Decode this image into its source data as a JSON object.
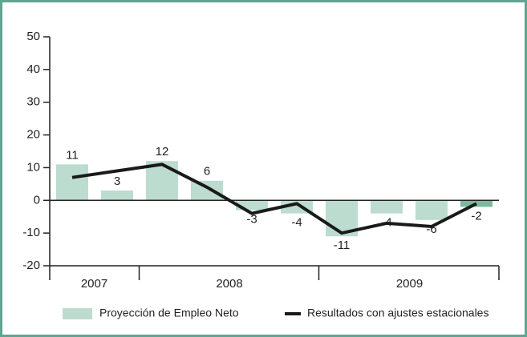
{
  "chart_data": {
    "type": "bar",
    "categories": [
      null,
      null,
      null,
      null,
      null,
      null,
      null,
      null,
      null,
      null
    ],
    "groups": [
      {
        "label": "2007",
        "count": 2
      },
      {
        "label": "2008",
        "count": 4
      },
      {
        "label": "2009",
        "count": 4
      }
    ],
    "series": [
      {
        "name": "Proyección de Empleo Neto",
        "type": "bar",
        "colors": [
          "#bcdccf",
          "#bcdccf",
          "#bcdccf",
          "#bcdccf",
          "#bcdccf",
          "#bcdccf",
          "#bcdccf",
          "#bcdccf",
          "#bcdccf",
          "#7fb8a0"
        ],
        "values": [
          11,
          3,
          12,
          6,
          -3,
          -4,
          -11,
          -4,
          -6,
          -2
        ]
      },
      {
        "name": "Resultados con ajustes estacionales",
        "type": "line",
        "color": "#1a1a1a",
        "values": [
          7,
          9,
          11,
          4,
          -4,
          -1,
          -10,
          -7,
          -8,
          -1
        ]
      }
    ],
    "ylim": [
      -20,
      50
    ],
    "yticks": [
      -20,
      -10,
      0,
      10,
      20,
      30,
      40,
      50
    ],
    "frame_color": "#5fa592"
  }
}
